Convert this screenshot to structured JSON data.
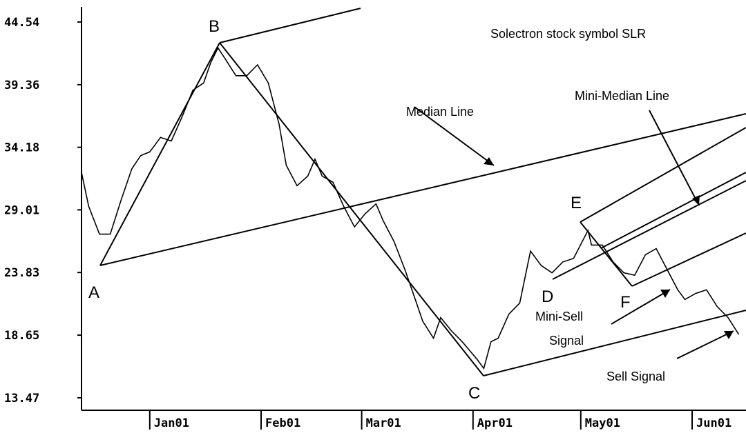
{
  "chart_data": {
    "type": "line",
    "title": "Solectron stock symbol SLR",
    "x": [
      -19,
      -17,
      -14,
      -11,
      -8,
      -5,
      -2.5,
      0,
      3,
      6,
      9,
      12,
      15,
      17,
      19,
      21,
      24,
      27,
      30,
      33,
      36,
      38,
      41,
      44,
      46,
      48,
      51,
      54,
      57,
      60,
      63,
      65,
      68,
      71,
      73,
      76,
      79,
      81,
      84,
      87,
      91,
      93,
      95,
      97,
      100,
      103,
      106,
      109,
      112,
      115,
      118,
      122,
      123,
      126,
      129,
      132,
      135,
      138,
      141,
      144,
      147,
      149,
      152,
      155,
      158,
      161,
      164
    ],
    "series": [
      {
        "name": "SLR",
        "color": "#000000",
        "values": [
          32.1,
          29.3,
          27.0,
          27.0,
          29.8,
          32.4,
          33.5,
          33.8,
          35.0,
          34.7,
          36.7,
          38.9,
          39.5,
          41.2,
          42.4,
          41.5,
          40.1,
          40.1,
          41.0,
          39.5,
          36.1,
          32.7,
          31.0,
          31.8,
          33.2,
          31.8,
          31.3,
          29.3,
          27.6,
          28.7,
          29.5,
          28.1,
          26.4,
          24.1,
          22.4,
          19.8,
          18.4,
          20.1,
          19.0,
          18.1,
          16.7,
          15.9,
          18.1,
          18.4,
          20.4,
          21.3,
          25.6,
          24.4,
          23.8,
          24.7,
          25.0,
          27.3,
          26.1,
          26.1,
          24.7,
          23.8,
          23.6,
          25.3,
          25.8,
          24.1,
          22.4,
          21.6,
          22.1,
          22.4,
          21.0,
          20.1,
          18.7
        ]
      }
    ],
    "xlim": [
      -19,
      166
    ],
    "xticks": [
      {
        "value": 0,
        "label": "Jan01"
      },
      {
        "value": 31,
        "label": "Feb01"
      },
      {
        "value": 59,
        "label": "Mar01"
      },
      {
        "value": 90,
        "label": "Apr01"
      },
      {
        "value": 120,
        "label": "May01"
      },
      {
        "value": 151,
        "label": "Jun01"
      }
    ],
    "ylim": [
      12.44,
      46.36
    ],
    "yticks": [
      {
        "value": 13.47,
        "label": "13.47"
      },
      {
        "value": 18.65,
        "label": "18.65"
      },
      {
        "value": 23.83,
        "label": "23.83"
      },
      {
        "value": 29.01,
        "label": "29.01"
      },
      {
        "value": 34.18,
        "label": "34.18"
      },
      {
        "value": 39.36,
        "label": "39.36"
      },
      {
        "value": 44.54,
        "label": "44.54"
      }
    ],
    "annotations": [
      "A",
      "B",
      "C",
      "D",
      "E",
      "F",
      "Median Line",
      "Mini-Median Line",
      "Mini-Sell",
      "Signal",
      "Sell Signal"
    ]
  }
}
